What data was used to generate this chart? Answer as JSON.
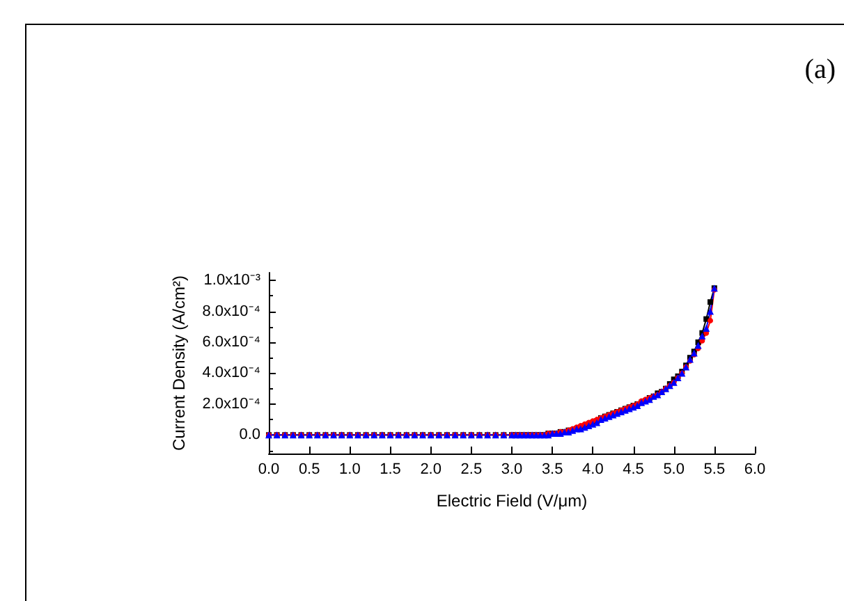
{
  "chart_data": {
    "type": "line",
    "xlabel": "Electric Field (V/μm)",
    "ylabel": "Current Density (A/cm²)",
    "annotations": [
      "(a)"
    ],
    "x": [
      0,
      0.1,
      0.2,
      0.3,
      0.4,
      0.5,
      0.6,
      0.7,
      0.8,
      0.9,
      1.0,
      1.1,
      1.2,
      1.3,
      1.4,
      1.5,
      1.6,
      1.7,
      1.8,
      1.9,
      2.0,
      2.1,
      2.2,
      2.3,
      2.4,
      2.5,
      2.6,
      2.7,
      2.8,
      2.9,
      3.0,
      3.05,
      3.1,
      3.15,
      3.2,
      3.25,
      3.3,
      3.35,
      3.4,
      3.45,
      3.5,
      3.55,
      3.6,
      3.65,
      3.7,
      3.75,
      3.8,
      3.85,
      3.9,
      3.95,
      4.0,
      4.05,
      4.1,
      4.15,
      4.2,
      4.25,
      4.3,
      4.35,
      4.4,
      4.45,
      4.5,
      4.55,
      4.6,
      4.65,
      4.7,
      4.75,
      4.8,
      4.85,
      4.9,
      4.95,
      5.0,
      5.05,
      5.1,
      5.15,
      5.2,
      5.25,
      5.3,
      5.35,
      5.4,
      5.45,
      5.5
    ],
    "series": [
      {
        "color": "#000000",
        "marker": "square",
        "values": [
          0,
          0,
          0,
          0,
          0,
          0,
          0,
          0,
          0,
          0,
          0,
          0,
          0,
          0,
          0,
          0,
          0,
          0,
          0,
          0,
          0,
          0,
          0,
          0,
          0,
          0,
          0,
          0,
          0,
          0,
          0,
          0,
          0,
          0,
          0,
          0,
          0,
          0,
          0,
          1e-05,
          1e-05,
          1e-05,
          2e-05,
          2e-05,
          3e-05,
          3e-05,
          4e-05,
          5e-05,
          6e-05,
          7e-05,
          8e-05,
          9e-05,
          0.00011,
          0.00012,
          0.00013,
          0.00014,
          0.00015,
          0.00016,
          0.00017,
          0.00018,
          0.00019,
          0.0002,
          0.00021,
          0.00022,
          0.00024,
          0.00025,
          0.00027,
          0.00028,
          0.0003,
          0.00033,
          0.00036,
          0.00038,
          0.00041,
          0.00045,
          0.0005,
          0.00054,
          0.0006,
          0.00066,
          0.00075,
          0.00086,
          0.00095
        ]
      },
      {
        "color": "#ff0000",
        "marker": "circle",
        "values": [
          0,
          0,
          0,
          0,
          0,
          0,
          0,
          0,
          0,
          0,
          0,
          0,
          0,
          0,
          0,
          0,
          0,
          0,
          0,
          0,
          0,
          0,
          0,
          0,
          0,
          0,
          0,
          0,
          0,
          0,
          0,
          0,
          0,
          0,
          0,
          0,
          0,
          0,
          0,
          1e-05,
          1e-05,
          1e-05,
          2e-05,
          2e-05,
          3e-05,
          4e-05,
          5e-05,
          6e-05,
          7e-05,
          8e-05,
          9e-05,
          0.0001,
          0.00011,
          0.00012,
          0.00013,
          0.00014,
          0.00015,
          0.00016,
          0.00017,
          0.00018,
          0.00019,
          0.0002,
          0.00022,
          0.00023,
          0.00024,
          0.00025,
          0.00026,
          0.00028,
          0.0003,
          0.00032,
          0.00034,
          0.00037,
          0.0004,
          0.00044,
          0.00048,
          0.00052,
          0.00056,
          0.00061,
          0.00066,
          0.00074,
          0.00094
        ]
      },
      {
        "color": "#0000ff",
        "marker": "triangle",
        "values": [
          0,
          0,
          0,
          0,
          0,
          0,
          0,
          0,
          0,
          0,
          0,
          0,
          0,
          0,
          0,
          0,
          0,
          0,
          0,
          0,
          0,
          0,
          0,
          0,
          0,
          0,
          0,
          0,
          0,
          0,
          0,
          0,
          0,
          0,
          0,
          0,
          0,
          0,
          0,
          0,
          1e-05,
          1e-05,
          1e-05,
          2e-05,
          2e-05,
          3e-05,
          4e-05,
          4e-05,
          5e-05,
          6e-05,
          7e-05,
          8e-05,
          0.0001,
          0.00011,
          0.00012,
          0.00013,
          0.00014,
          0.00015,
          0.00016,
          0.00017,
          0.00018,
          0.00019,
          0.00021,
          0.00022,
          0.00023,
          0.00025,
          0.00026,
          0.00028,
          0.0003,
          0.00032,
          0.00034,
          0.00037,
          0.0004,
          0.00044,
          0.00049,
          0.00053,
          0.00058,
          0.00064,
          0.00069,
          0.0008,
          0.00095
        ]
      }
    ],
    "xlim": [
      0,
      6
    ],
    "xticks": [
      {
        "value": 0,
        "label": "0.0"
      },
      {
        "value": 0.5,
        "label": "0.5"
      },
      {
        "value": 1,
        "label": "1.0"
      },
      {
        "value": 1.5,
        "label": "1.5"
      },
      {
        "value": 2,
        "label": "2.0"
      },
      {
        "value": 2.5,
        "label": "2.5"
      },
      {
        "value": 3,
        "label": "3.0"
      },
      {
        "value": 3.5,
        "label": "3.5"
      },
      {
        "value": 4,
        "label": "4.0"
      },
      {
        "value": 4.5,
        "label": "4.5"
      },
      {
        "value": 5,
        "label": "5.0"
      },
      {
        "value": 5.5,
        "label": "5.5"
      },
      {
        "value": 6,
        "label": "6.0"
      }
    ],
    "ylim": [
      -0.00012,
      0.00105
    ],
    "yticks": [
      {
        "value": 0,
        "label": "0.0"
      },
      {
        "value": 0.0002,
        "label": "2.0x10⁻⁴"
      },
      {
        "value": 0.0004,
        "label": "4.0x10⁻⁴"
      },
      {
        "value": 0.0006,
        "label": "6.0x10⁻⁴"
      },
      {
        "value": 0.0008,
        "label": "8.0x10⁻⁴"
      },
      {
        "value": 0.001,
        "label": "1.0x10⁻³"
      }
    ],
    "grid": false,
    "line_style": "solid"
  }
}
